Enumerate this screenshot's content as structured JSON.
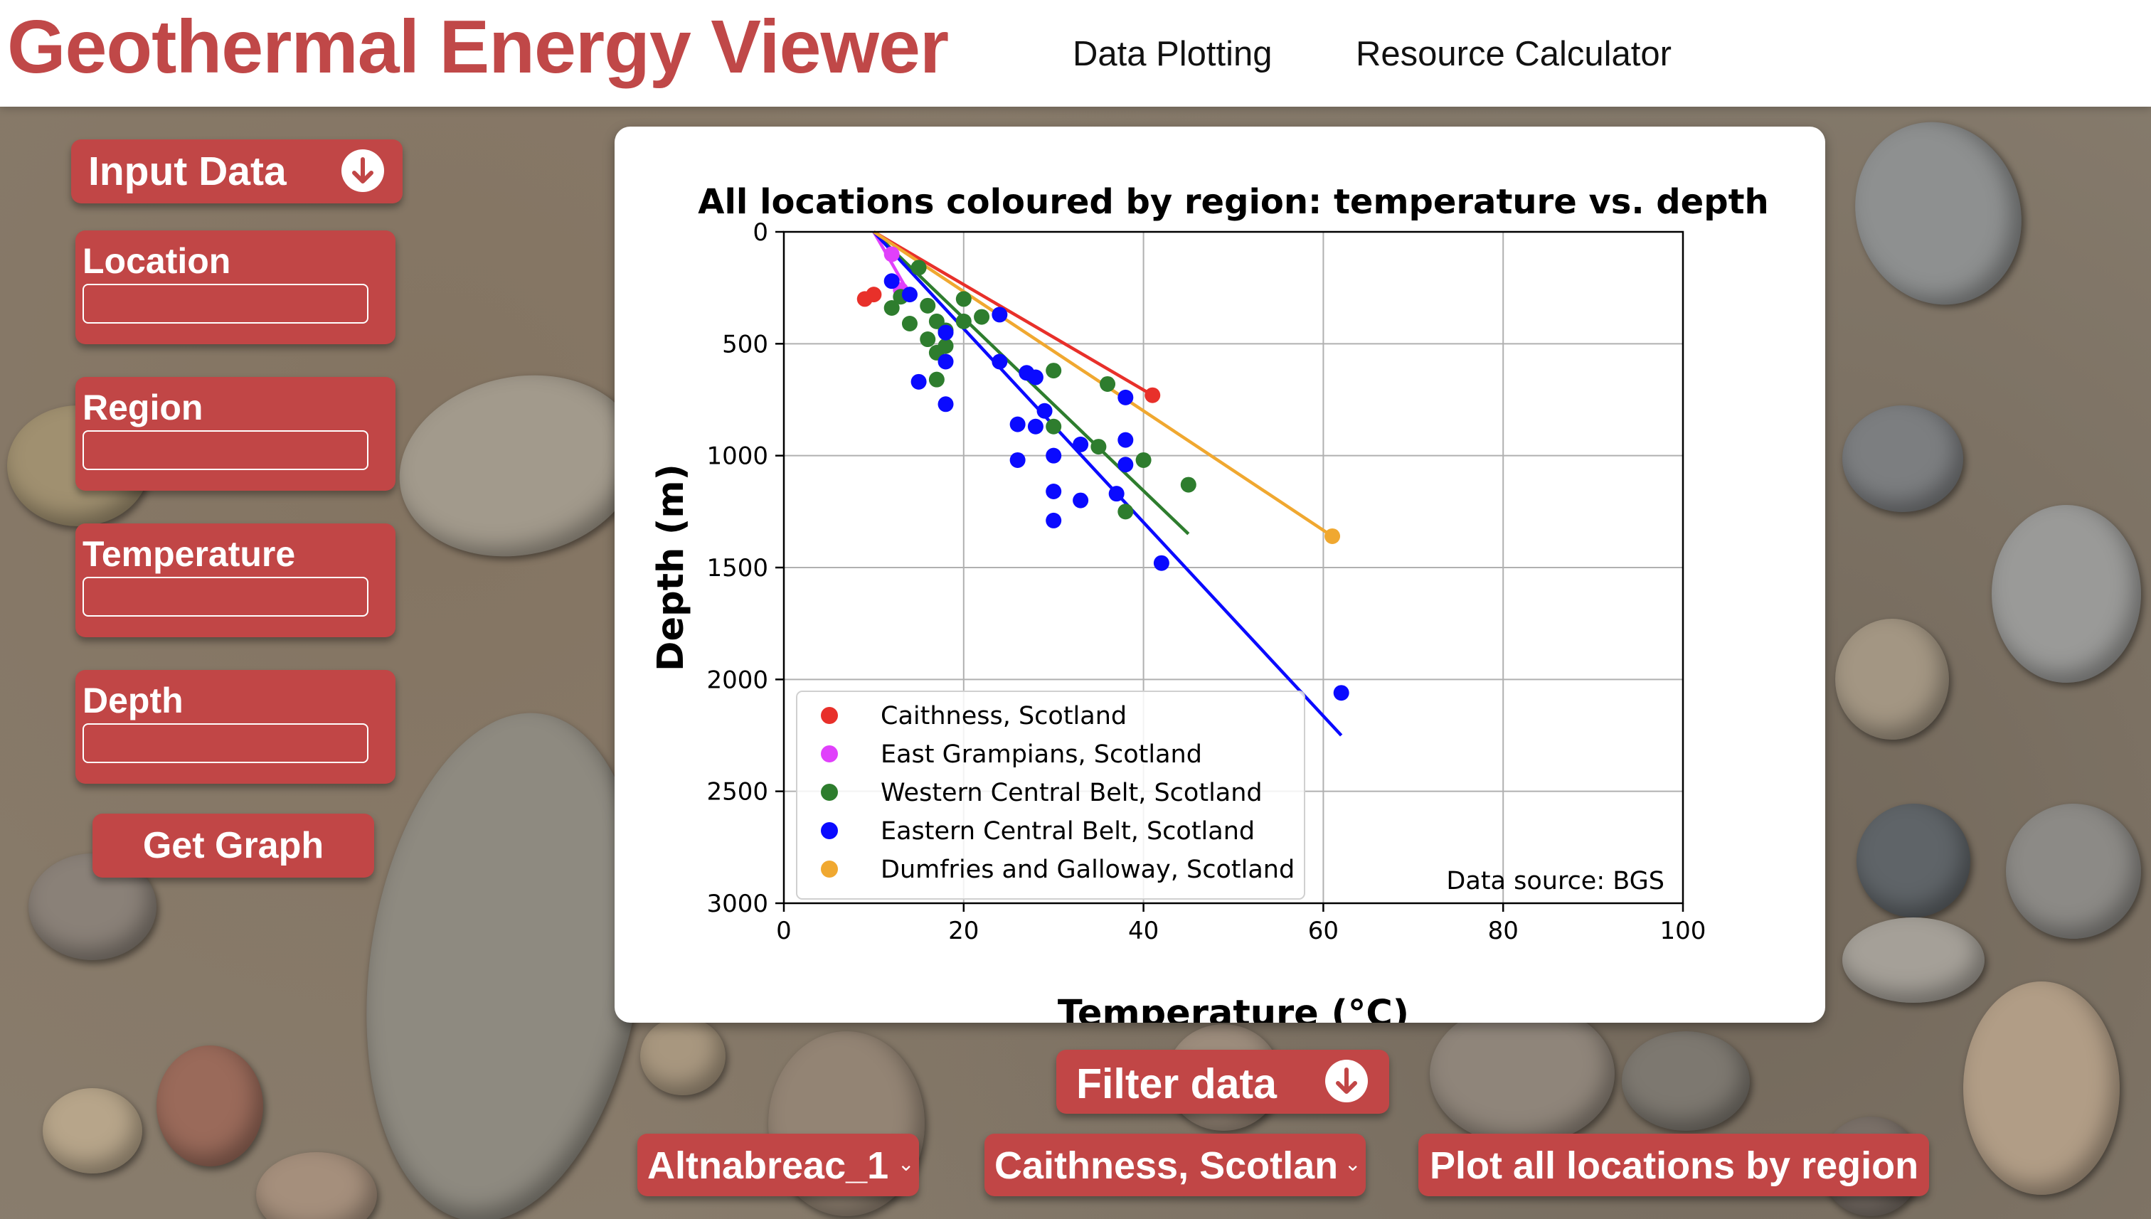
{
  "header": {
    "title": "Geothermal Energy Viewer",
    "nav": [
      "Data Plotting",
      "Resource Calculator"
    ]
  },
  "sidebar": {
    "input_data_label": "Input Data",
    "fields": [
      {
        "label": "Location",
        "value": ""
      },
      {
        "label": "Region",
        "value": ""
      },
      {
        "label": "Temperature",
        "value": ""
      },
      {
        "label": "Depth",
        "value": ""
      }
    ],
    "get_graph_label": "Get Graph"
  },
  "filter": {
    "label": "Filter data",
    "location_select": "Altnabreac_1",
    "region_select": "Caithness, Scotlan",
    "plot_all_label": "Plot all locations by region"
  },
  "colors": {
    "accent": "#c14646",
    "Caithness": "#e8302a",
    "East Grampians": "#e040fb",
    "Western Central Belt": "#2e7d2e",
    "Eastern Central Belt": "#0a0aff",
    "Dumfries": "#f0a830"
  },
  "chart_data": {
    "type": "scatter",
    "title": "All locations coloured by region: temperature vs. depth",
    "xlabel": "Temperature (°C)",
    "ylabel": "Depth (m)",
    "xlim": [
      0,
      100
    ],
    "ylim": [
      3000,
      0
    ],
    "y_inverted": true,
    "xticks": [
      0,
      20,
      40,
      60,
      80,
      100
    ],
    "yticks": [
      0,
      500,
      1000,
      1500,
      2000,
      2500,
      3000
    ],
    "grid": true,
    "legend_position": "lower-left",
    "annotation": "Data source: BGS",
    "series": [
      {
        "name": "Caithness, Scotland",
        "color": "#e8302a",
        "points": [
          [
            9,
            300
          ],
          [
            10,
            280
          ],
          [
            41,
            730
          ]
        ],
        "trendline": [
          [
            10,
            0
          ],
          [
            41,
            730
          ]
        ]
      },
      {
        "name": "East Grampians, Scotland",
        "color": "#e040fb",
        "points": [
          [
            12,
            100
          ],
          [
            13,
            260
          ]
        ],
        "trendline": [
          [
            10,
            0
          ],
          [
            14,
            280
          ]
        ]
      },
      {
        "name": "Western Central Belt, Scotland",
        "color": "#2e7d2e",
        "points": [
          [
            12,
            340
          ],
          [
            13,
            290
          ],
          [
            14,
            410
          ],
          [
            15,
            160
          ],
          [
            16,
            330
          ],
          [
            16,
            480
          ],
          [
            17,
            400
          ],
          [
            17,
            540
          ],
          [
            17,
            660
          ],
          [
            18,
            510
          ],
          [
            18,
            440
          ],
          [
            20,
            300
          ],
          [
            20,
            400
          ],
          [
            22,
            380
          ],
          [
            30,
            620
          ],
          [
            30,
            870
          ],
          [
            35,
            960
          ],
          [
            36,
            680
          ],
          [
            38,
            1250
          ],
          [
            40,
            1020
          ],
          [
            45,
            1130
          ]
        ],
        "trendline": [
          [
            10,
            0
          ],
          [
            45,
            1350
          ]
        ]
      },
      {
        "name": "Eastern Central Belt, Scotland",
        "color": "#0a0aff",
        "points": [
          [
            12,
            220
          ],
          [
            14,
            280
          ],
          [
            15,
            670
          ],
          [
            18,
            450
          ],
          [
            18,
            580
          ],
          [
            18,
            770
          ],
          [
            24,
            370
          ],
          [
            24,
            580
          ],
          [
            26,
            860
          ],
          [
            26,
            1020
          ],
          [
            27,
            630
          ],
          [
            28,
            650
          ],
          [
            28,
            870
          ],
          [
            29,
            800
          ],
          [
            30,
            1000
          ],
          [
            30,
            1160
          ],
          [
            30,
            1290
          ],
          [
            33,
            950
          ],
          [
            33,
            1200
          ],
          [
            37,
            1170
          ],
          [
            38,
            740
          ],
          [
            38,
            930
          ],
          [
            38,
            1040
          ],
          [
            42,
            1480
          ],
          [
            62,
            2060
          ]
        ],
        "trendline": [
          [
            10,
            0
          ],
          [
            62,
            2250
          ]
        ]
      },
      {
        "name": "Dumfries and Galloway, Scotland",
        "color": "#f0a830",
        "points": [
          [
            61,
            1360
          ]
        ],
        "trendline": [
          [
            10,
            0
          ],
          [
            61,
            1360
          ]
        ]
      }
    ]
  }
}
